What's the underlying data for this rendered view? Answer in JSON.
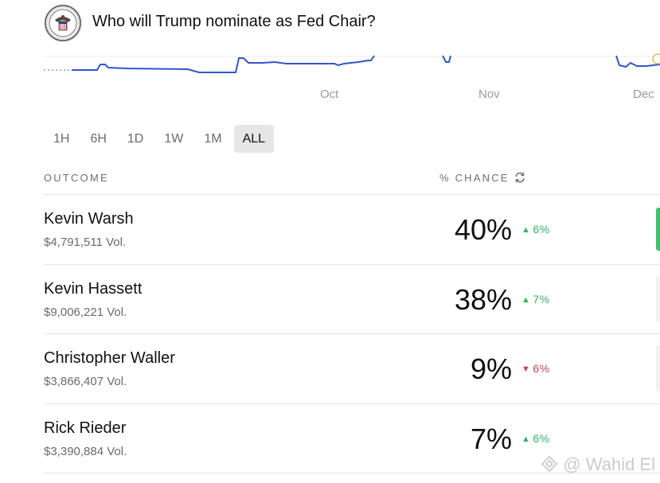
{
  "market": {
    "title": "Who will Trump nominate as Fed Chair?"
  },
  "chart": {
    "line_color": "#3355cc",
    "x_labels": [
      "Oct",
      "Nov",
      "Dec"
    ]
  },
  "time_tabs": [
    {
      "label": "1H",
      "active": false
    },
    {
      "label": "6H",
      "active": false
    },
    {
      "label": "1D",
      "active": false
    },
    {
      "label": "1W",
      "active": false
    },
    {
      "label": "1M",
      "active": false
    },
    {
      "label": "ALL",
      "active": true
    }
  ],
  "table": {
    "outcome_header": "OUTCOME",
    "chance_header": "% CHANCE",
    "refresh_icon": "refresh-icon"
  },
  "outcomes": [
    {
      "name": "Kevin Warsh",
      "volume": "$4,791,511 Vol.",
      "chance": "40%",
      "change": "6%",
      "direction": "up"
    },
    {
      "name": "Kevin Hassett",
      "volume": "$9,006,221 Vol.",
      "chance": "38%",
      "change": "7%",
      "direction": "up"
    },
    {
      "name": "Christopher Waller",
      "volume": "$3,866,407 Vol.",
      "chance": "9%",
      "change": "6%",
      "direction": "down"
    },
    {
      "name": "Rick Rieder",
      "volume": "$3,390,884 Vol.",
      "chance": "7%",
      "change": "6%",
      "direction": "up"
    }
  ],
  "colors": {
    "up": "#2fb561",
    "down": "#d2404a",
    "accent_line": "#3355cc"
  },
  "watermark": {
    "text": "@ Wahid El"
  }
}
